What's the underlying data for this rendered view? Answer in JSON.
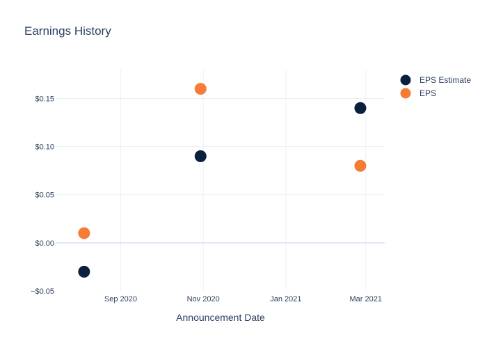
{
  "chart_data": {
    "type": "scatter",
    "title": "Earnings History",
    "xlabel": "Announcement Date",
    "ylabel": "",
    "x_type": "date",
    "xlim": [
      "2020-07-15",
      "2021-03-15"
    ],
    "ylim": [
      -0.05,
      0.18
    ],
    "x_ticks": [
      {
        "value": "2020-09-01",
        "label": "Sep 2020"
      },
      {
        "value": "2020-11-01",
        "label": "Nov 2020"
      },
      {
        "value": "2021-01-01",
        "label": "Jan 2021"
      },
      {
        "value": "2021-03-01",
        "label": "Mar 2021"
      }
    ],
    "y_ticks": [
      {
        "value": -0.05,
        "label": "−$0.05"
      },
      {
        "value": 0.0,
        "label": "$0.00"
      },
      {
        "value": 0.05,
        "label": "$0.05"
      },
      {
        "value": 0.1,
        "label": "$0.10"
      },
      {
        "value": 0.15,
        "label": "$0.15"
      }
    ],
    "grid": true,
    "legend_position": "top-right",
    "series": [
      {
        "name": "EPS Estimate",
        "color": "#0b1f3f",
        "points": [
          {
            "x": "2020-08-05",
            "y": -0.03
          },
          {
            "x": "2020-10-30",
            "y": 0.09
          },
          {
            "x": "2021-02-25",
            "y": 0.14
          }
        ]
      },
      {
        "name": "EPS",
        "color": "#f47c34",
        "points": [
          {
            "x": "2020-08-05",
            "y": 0.01
          },
          {
            "x": "2020-10-30",
            "y": 0.16
          },
          {
            "x": "2021-02-25",
            "y": 0.08
          }
        ]
      }
    ]
  }
}
